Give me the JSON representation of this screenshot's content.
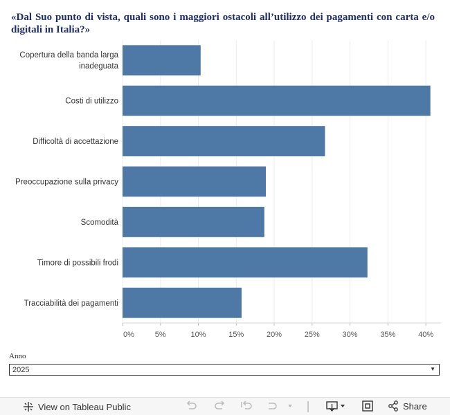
{
  "chart_data": {
    "type": "bar",
    "orientation": "horizontal",
    "title": "«Dal Suo punto di vista, quali sono i maggiori ostacoli all’utilizzo dei pagamenti con carta e/o digitali in Italia?»",
    "categories": [
      [
        "Copertura della banda larga",
        "inadeguata"
      ],
      [
        "Costi di utilizzo"
      ],
      [
        "Difficoltà di accettazione"
      ],
      [
        "Preoccupazione sulla privacy"
      ],
      [
        "Scomodità"
      ],
      [
        "Timore di possibili frodi"
      ],
      [
        "Tracciabilità dei pagamenti"
      ]
    ],
    "values": [
      10.3,
      40.6,
      26.7,
      18.9,
      18.7,
      32.3,
      15.7
    ],
    "xlim": [
      0,
      42
    ],
    "xticks": [
      0,
      5,
      10,
      15,
      20,
      25,
      30,
      35,
      40
    ],
    "tick_suffix": "%",
    "grid": true,
    "bar_color": "#4e79a7"
  },
  "filter": {
    "label": "Anno",
    "selected": "2025"
  },
  "toolbar": {
    "view_label": "View on Tableau Public",
    "share_label": "Share"
  }
}
